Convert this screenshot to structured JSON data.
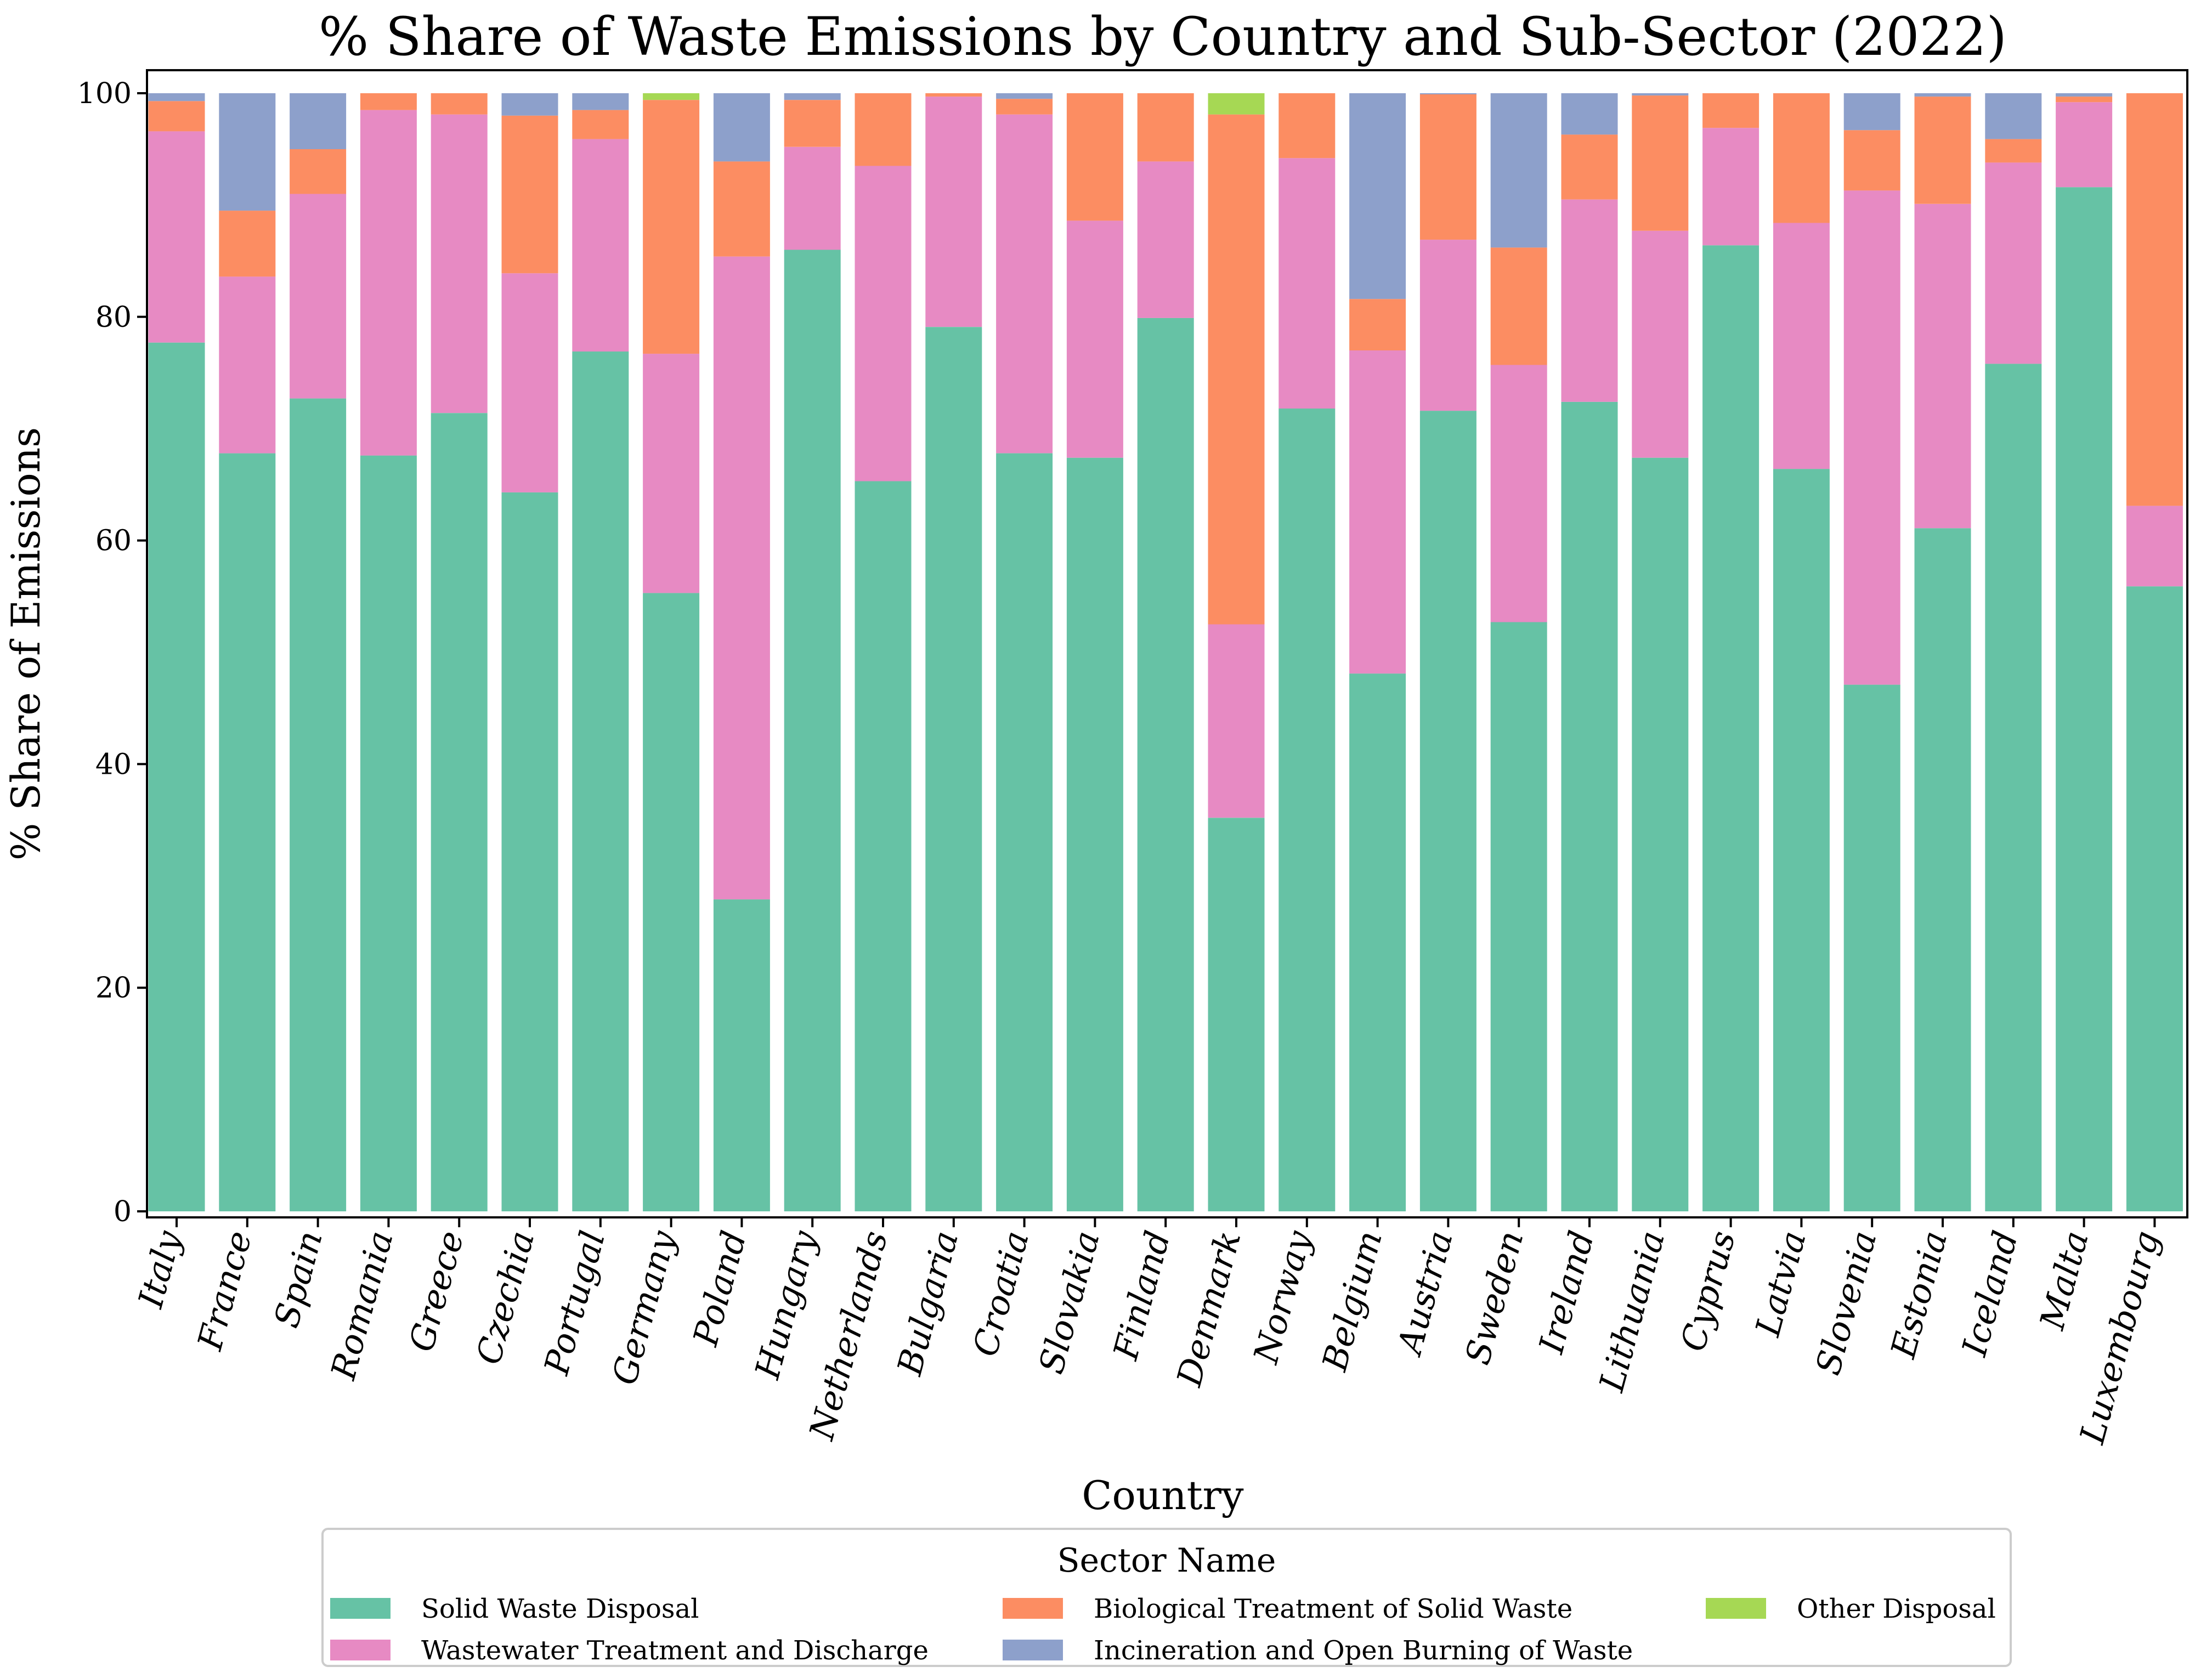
{
  "chart_data": {
    "type": "bar",
    "stacked": true,
    "title": "% Share of Waste Emissions by Country and Sub-Sector (2022)",
    "xlabel": "Country",
    "ylabel": "% Share of Emissions",
    "ylim": [
      0,
      100
    ],
    "yticks": [
      0,
      20,
      40,
      60,
      80,
      100
    ],
    "grid": false,
    "legend": {
      "title": "Sector Name",
      "placement": "bottom-center"
    },
    "categories": [
      "Italy",
      "France",
      "Spain",
      "Romania",
      "Greece",
      "Czechia",
      "Portugal",
      "Germany",
      "Poland",
      "Hungary",
      "Netherlands",
      "Bulgaria",
      "Croatia",
      "Slovakia",
      "Finland",
      "Denmark",
      "Norway",
      "Belgium",
      "Austria",
      "Sweden",
      "Ireland",
      "Lithuania",
      "Cyprus",
      "Latvia",
      "Slovenia",
      "Estonia",
      "Iceland",
      "Malta",
      "Luxembourg"
    ],
    "series": [
      {
        "name": "Solid Waste Disposal",
        "color": "#66c2a5",
        "values": [
          77.7,
          67.8,
          72.7,
          67.6,
          71.4,
          64.3,
          76.9,
          55.3,
          27.9,
          86.0,
          65.3,
          79.1,
          67.8,
          67.4,
          79.9,
          35.2,
          71.8,
          48.1,
          71.6,
          52.7,
          72.4,
          67.4,
          86.4,
          66.4,
          47.1,
          61.1,
          75.8,
          91.6,
          55.9
        ]
      },
      {
        "name": "Wastewater Treatment and Discharge",
        "color": "#e78ac3",
        "values": [
          18.9,
          15.8,
          18.3,
          30.9,
          26.7,
          19.6,
          19.0,
          21.4,
          57.5,
          9.2,
          28.2,
          20.6,
          30.3,
          21.2,
          14.0,
          17.3,
          22.4,
          28.9,
          15.3,
          23.0,
          18.1,
          20.3,
          10.5,
          22.0,
          44.2,
          29.0,
          18.0,
          7.6,
          7.2
        ]
      },
      {
        "name": "Biological Treatment of Solid Waste",
        "color": "#fc8d62",
        "values": [
          2.7,
          5.9,
          4.0,
          1.5,
          1.9,
          14.1,
          2.6,
          22.7,
          8.5,
          4.2,
          6.5,
          0.3,
          1.4,
          11.4,
          6.1,
          45.6,
          5.8,
          4.6,
          13.0,
          10.5,
          5.8,
          12.1,
          3.1,
          11.6,
          5.4,
          9.6,
          2.1,
          0.5,
          36.9
        ]
      },
      {
        "name": "Incineration and Open Burning of Waste",
        "color": "#8da0cb",
        "values": [
          0.7,
          10.5,
          5.0,
          0.0,
          0.0,
          2.0,
          1.5,
          0.0,
          6.1,
          0.6,
          0.0,
          0.0,
          0.5,
          0.0,
          0.0,
          0.0,
          0.0,
          18.4,
          0.1,
          13.8,
          3.7,
          0.2,
          0.0,
          0.0,
          3.3,
          0.3,
          4.1,
          0.3,
          0.0
        ]
      },
      {
        "name": "Other Disposal",
        "color": "#a6d854",
        "values": [
          0,
          0,
          0,
          0,
          0,
          0,
          0,
          0.6,
          0,
          0,
          0,
          0,
          0,
          0,
          0,
          1.9,
          0,
          0,
          0,
          0,
          0,
          0,
          0,
          0,
          0,
          0,
          0,
          0,
          0
        ]
      }
    ]
  }
}
